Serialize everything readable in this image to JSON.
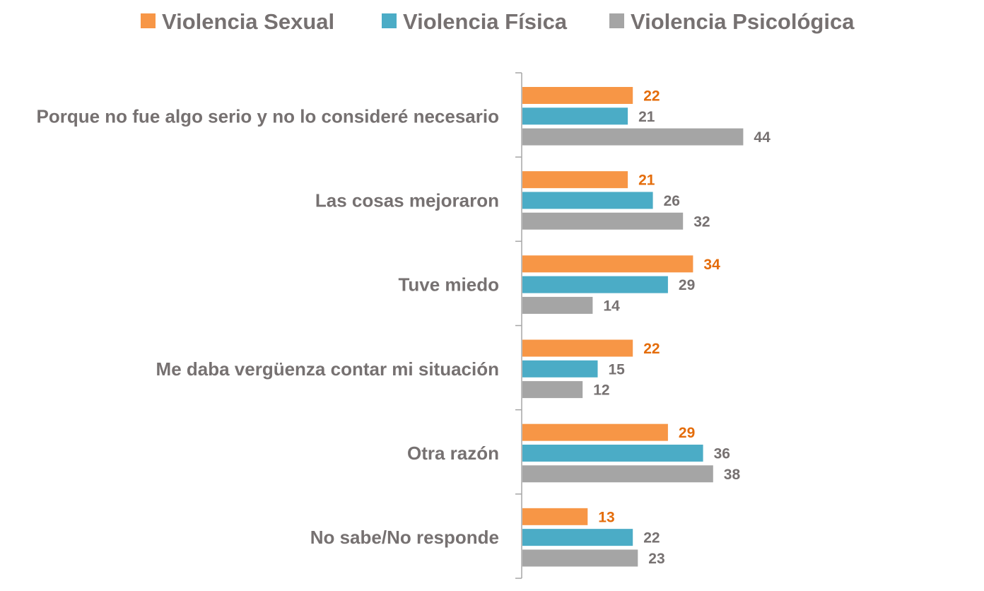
{
  "chart_data": {
    "type": "bar",
    "orientation": "horizontal",
    "categories": [
      "Porque no fue algo serio y no lo consideré necesario",
      "Las cosas mejoraron",
      "Tuve miedo",
      "Me daba vergüenza contar mi situación",
      "Otra razón",
      "No sabe/No responde"
    ],
    "series": [
      {
        "name": "Violencia Sexual",
        "color": "#f79646",
        "label_color": "#e46c0a",
        "values": [
          22,
          21,
          34,
          22,
          29,
          13
        ]
      },
      {
        "name": "Violencia Física",
        "color": "#4bacc6",
        "label_color": "#767171",
        "values": [
          21,
          26,
          29,
          15,
          36,
          22
        ]
      },
      {
        "name": "Violencia Psicológica",
        "color": "#a5a5a5",
        "label_color": "#767171",
        "values": [
          44,
          32,
          14,
          12,
          38,
          23
        ]
      }
    ],
    "xlim": [
      0,
      50
    ],
    "grid": false,
    "legend_position": "top",
    "data_labels": true
  }
}
